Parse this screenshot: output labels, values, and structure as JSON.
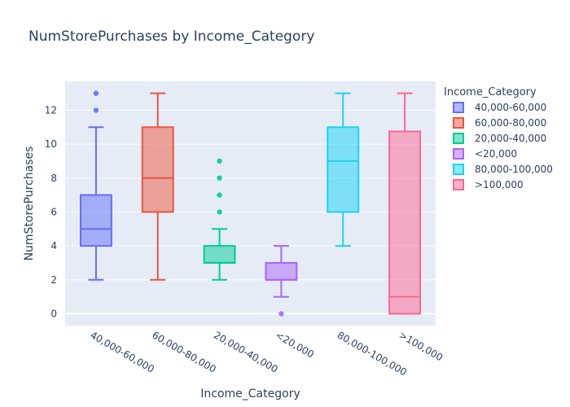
{
  "chart_data": {
    "type": "box",
    "title": "NumStorePurchases by Income_Category",
    "xlabel": "Income_Category",
    "ylabel": "NumStorePurchases",
    "ylim": [
      -0.7,
      13.7
    ],
    "yticks": [
      0,
      2,
      4,
      6,
      8,
      10,
      12
    ],
    "grid": true,
    "legend": {
      "title": "Income_Category",
      "placement": "right"
    },
    "categories": [
      "40,000-60,000",
      "60,000-80,000",
      "20,000-40,000",
      "<20,000",
      "80,000-100,000",
      ">100,000"
    ],
    "series": [
      {
        "name": "40,000-60,000",
        "color": "#636efa",
        "q1": 4,
        "median": 5,
        "q3": 7,
        "whisker_low": 2,
        "whisker_high": 11,
        "outliers": [
          12,
          13
        ]
      },
      {
        "name": "60,000-80,000",
        "color": "#ef553b",
        "q1": 6,
        "median": 8,
        "q3": 11,
        "whisker_low": 2,
        "whisker_high": 13,
        "outliers": []
      },
      {
        "name": "20,000-40,000",
        "color": "#00cc96",
        "q1": 3,
        "median": 3,
        "q3": 4,
        "whisker_low": 2,
        "whisker_high": 5,
        "outliers": [
          6,
          7,
          8,
          9
        ]
      },
      {
        "name": "<20,000",
        "color": "#ab63fa",
        "q1": 2,
        "median": 2,
        "q3": 3,
        "whisker_low": 1,
        "whisker_high": 4,
        "outliers": [
          0
        ]
      },
      {
        "name": "80,000-100,000",
        "color": "#19d3f3",
        "q1": 6,
        "median": 9,
        "q3": 11,
        "whisker_low": 4,
        "whisker_high": 13,
        "outliers": []
      },
      {
        "name": ">100,000",
        "color": "#ff6692",
        "q1": 0,
        "median": 1,
        "q3": 10.75,
        "whisker_low": 0,
        "whisker_high": 13,
        "outliers": []
      }
    ]
  }
}
